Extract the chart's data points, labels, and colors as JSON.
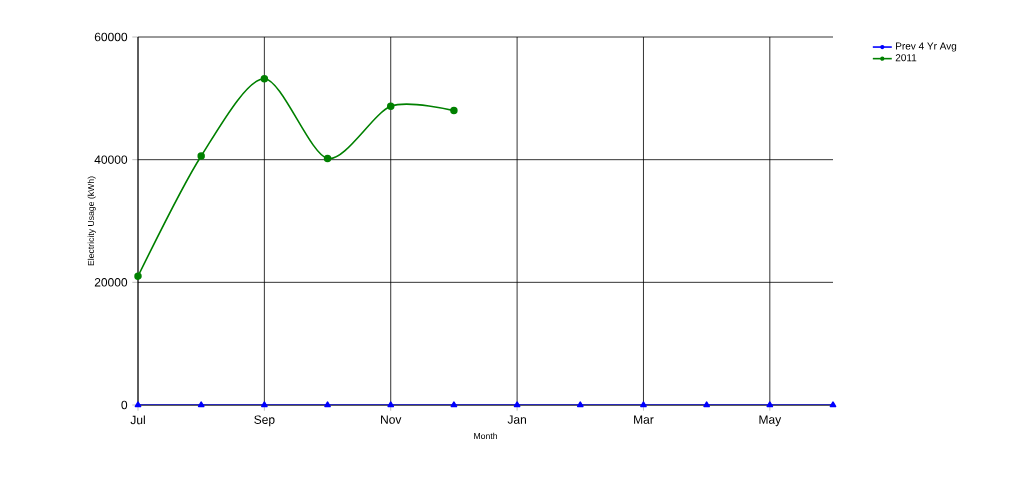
{
  "chart_data": {
    "type": "line",
    "xlabel": "Month",
    "ylabel": "Electricity Usage (kWh)",
    "categories": [
      "Jul",
      null,
      "Sep",
      null,
      "Nov",
      null,
      "Jan",
      null,
      "Mar",
      null,
      "May",
      null
    ],
    "series": [
      {
        "name": "Prev 4 Yr Avg",
        "color": "#0000ff",
        "marker": "triangle",
        "values": [
          0,
          0,
          0,
          0,
          0,
          0,
          0,
          0,
          0,
          0,
          0,
          0
        ]
      },
      {
        "name": "2011",
        "color": "#008000",
        "marker": "circle",
        "values": [
          21000,
          40600,
          53200,
          40200,
          48700,
          48000,
          null,
          null,
          null,
          null,
          null,
          null
        ]
      }
    ],
    "ylim": [
      0,
      60000
    ],
    "yticks": [
      0,
      20000,
      40000,
      60000
    ],
    "grid": true,
    "legend": "top right"
  }
}
